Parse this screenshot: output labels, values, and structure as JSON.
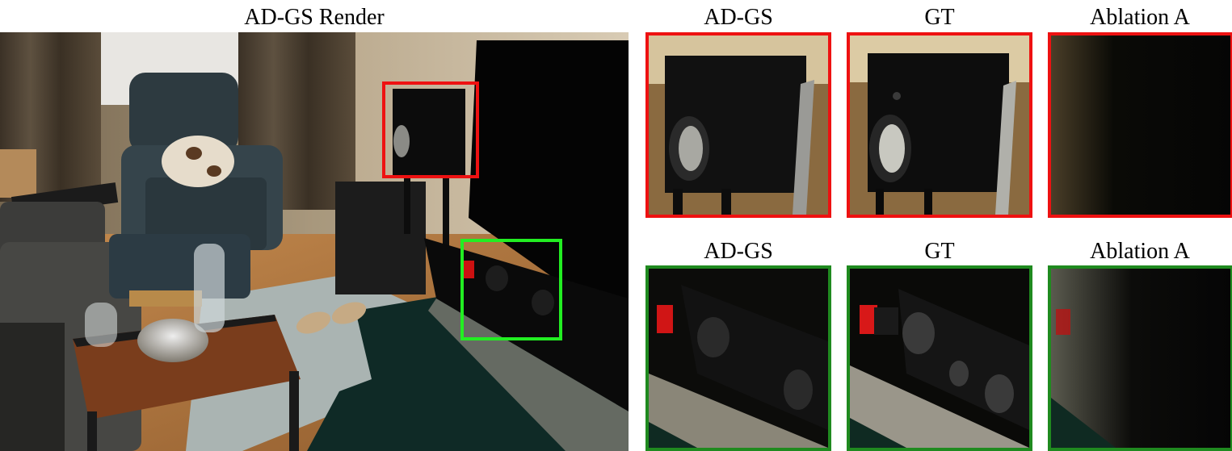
{
  "main_title": "AD-GS Render",
  "crops": {
    "top": [
      {
        "label": "AD-GS"
      },
      {
        "label": "GT"
      },
      {
        "label": "Ablation A"
      }
    ],
    "bottom": [
      {
        "label": "AD-GS"
      },
      {
        "label": "GT"
      },
      {
        "label": "Ablation A"
      }
    ]
  },
  "colors": {
    "red_frame": "#ee1111",
    "green_frame": "#1f8a1f",
    "green_box": "#22ee22"
  }
}
